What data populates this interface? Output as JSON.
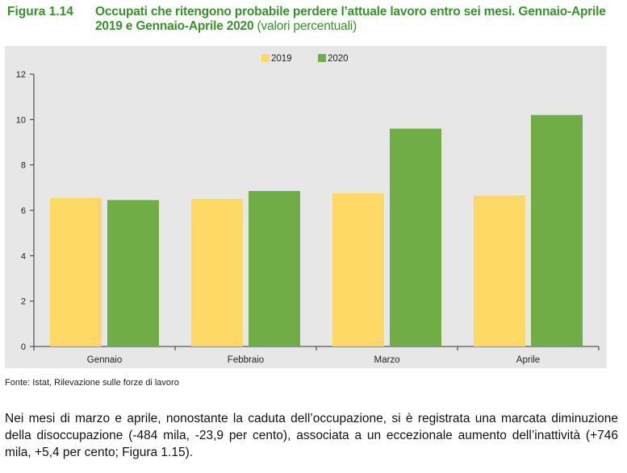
{
  "figure": {
    "label": "Figura 1.14",
    "title": "Occupati che ritengono probabile perdere l’attuale lavoro entro sei mesi. Gennaio-Aprile 2019 e Gennaio-Aprile 2020",
    "unit": "(valori percentuali)"
  },
  "source": "Fonte: Istat, Rilevazione sulle forze di lavoro",
  "body_text": "Nei mesi di marzo e aprile, nonostante la caduta dell’occupazione, si è registrata una marcata diminuzione della disoccupazione (-484 mila, -23,9 per cento), associata a un eccezionale aumento dell’inattività (+746 mila, +5,4 per cento; Figura 1.15).",
  "chart_data": {
    "type": "bar",
    "categories": [
      "Gennaio",
      "Febbraio",
      "Marzo",
      "Aprile"
    ],
    "series": [
      {
        "name": "2019",
        "color": "#ffd966",
        "values": [
          6.55,
          6.5,
          6.75,
          6.65
        ]
      },
      {
        "name": "2020",
        "color": "#70ad47",
        "values": [
          6.45,
          6.85,
          9.6,
          10.2
        ]
      }
    ],
    "ylim": [
      0,
      12
    ],
    "yticks": [
      0,
      2,
      4,
      6,
      8,
      10,
      12
    ],
    "grid": false,
    "legend": "top-center",
    "background": "#e7e7e7"
  }
}
